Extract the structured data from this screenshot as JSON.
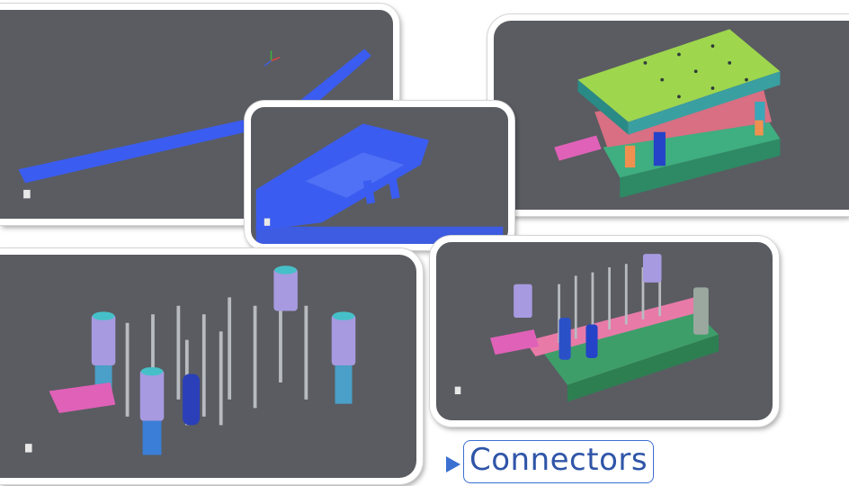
{
  "caption": {
    "label": "Connectors"
  },
  "colors": {
    "viewport_bg": "#5a5c61",
    "strip_blue": "#3b5cf0",
    "plate_green": "#a2d35a",
    "plate_teal": "#3e9e82",
    "plate_pink": "#e06a8a",
    "spring_purple": "#a79ae0",
    "accent_blue": "#3b6fd1"
  },
  "panels": [
    {
      "id": "strip-overview",
      "icon": "view-cube-icon"
    },
    {
      "id": "die-assembly",
      "icon": "view-cube-icon"
    },
    {
      "id": "strip-closeup",
      "icon": "view-cube-icon"
    },
    {
      "id": "punch-array",
      "icon": "view-cube-icon"
    },
    {
      "id": "lower-die",
      "icon": "view-cube-icon"
    }
  ]
}
